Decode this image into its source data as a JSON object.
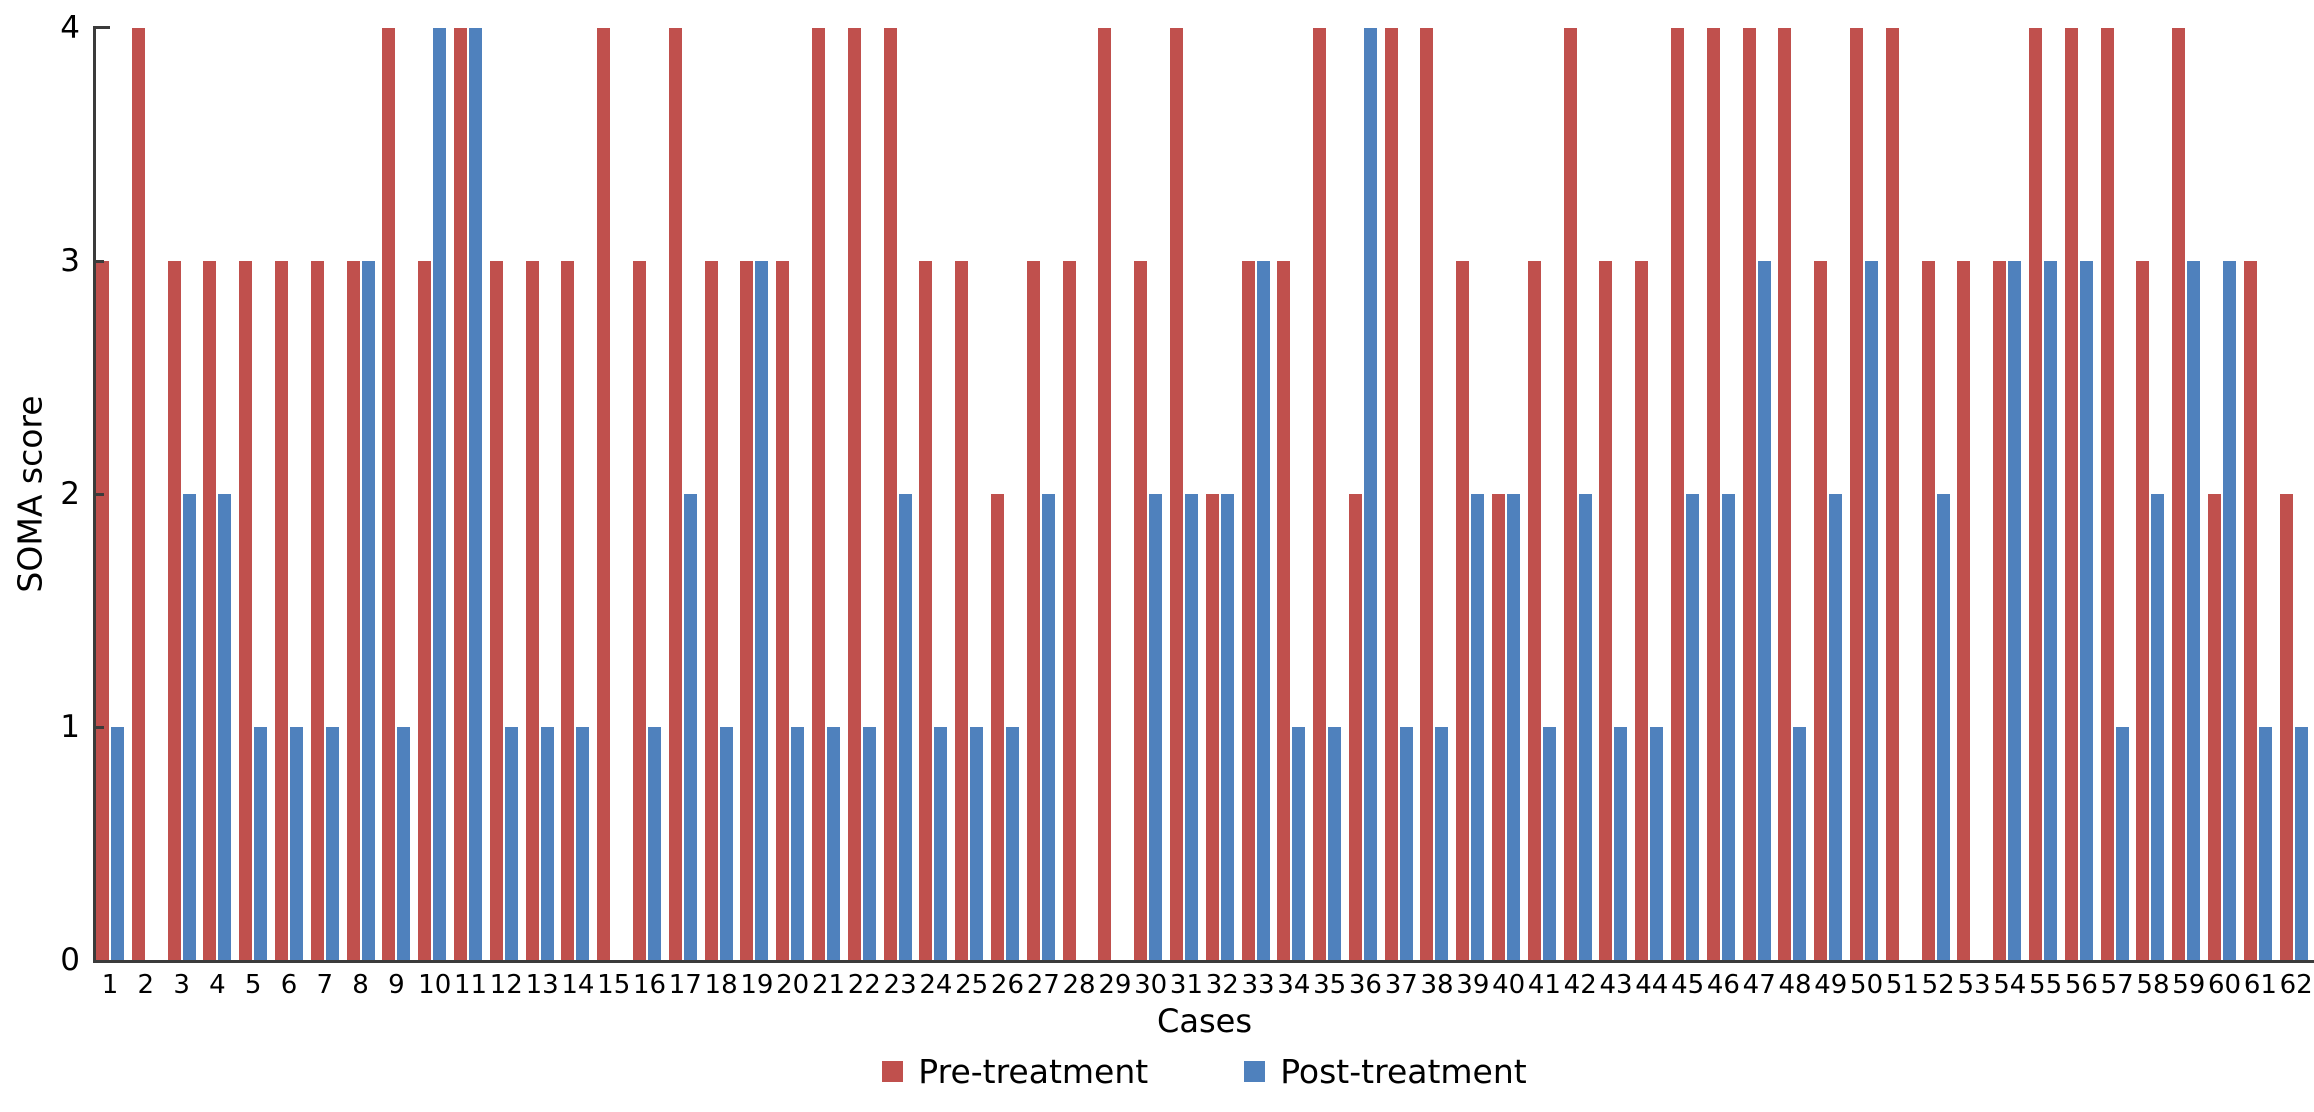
{
  "chart_data": {
    "type": "bar",
    "title": "",
    "xlabel": "Cases",
    "ylabel": "SOMA score",
    "ylim": [
      0,
      4
    ],
    "yticks": [
      4,
      3,
      2,
      1,
      0
    ],
    "grid": false,
    "legend_position": "bottom",
    "categories": [
      1,
      2,
      3,
      4,
      5,
      6,
      7,
      8,
      9,
      10,
      11,
      12,
      13,
      14,
      15,
      16,
      17,
      18,
      19,
      20,
      21,
      22,
      23,
      24,
      25,
      26,
      27,
      28,
      29,
      30,
      31,
      32,
      33,
      34,
      35,
      36,
      37,
      38,
      39,
      40,
      41,
      42,
      43,
      44,
      45,
      46,
      47,
      48,
      49,
      50,
      51,
      52,
      53,
      54,
      55,
      56,
      57,
      58,
      59,
      60,
      61,
      62
    ],
    "series": [
      {
        "name": "Pre-treatment",
        "color": "#c0504d",
        "values": [
          3,
          4,
          3,
          3,
          3,
          3,
          3,
          3,
          4,
          3,
          4,
          3,
          3,
          3,
          4,
          3,
          4,
          3,
          3,
          3,
          4,
          4,
          4,
          3,
          3,
          2,
          3,
          3,
          4,
          3,
          4,
          2,
          3,
          3,
          4,
          2,
          4,
          4,
          3,
          2,
          3,
          4,
          3,
          3,
          4,
          4,
          4,
          4,
          3,
          4,
          4,
          3,
          3,
          3,
          4,
          4,
          4,
          3,
          4,
          2,
          3,
          2
        ]
      },
      {
        "name": "Post-treatment",
        "color": "#4f81bd",
        "values": [
          1,
          0,
          2,
          2,
          1,
          1,
          1,
          3,
          1,
          4,
          4,
          1,
          1,
          1,
          0,
          1,
          2,
          1,
          3,
          1,
          1,
          1,
          2,
          1,
          1,
          1,
          2,
          0,
          0,
          2,
          2,
          2,
          3,
          1,
          1,
          4,
          1,
          1,
          2,
          2,
          1,
          2,
          1,
          1,
          2,
          2,
          3,
          1,
          2,
          3,
          0,
          2,
          0,
          3,
          3,
          3,
          1,
          2,
          3,
          3,
          1,
          1
        ]
      }
    ]
  }
}
